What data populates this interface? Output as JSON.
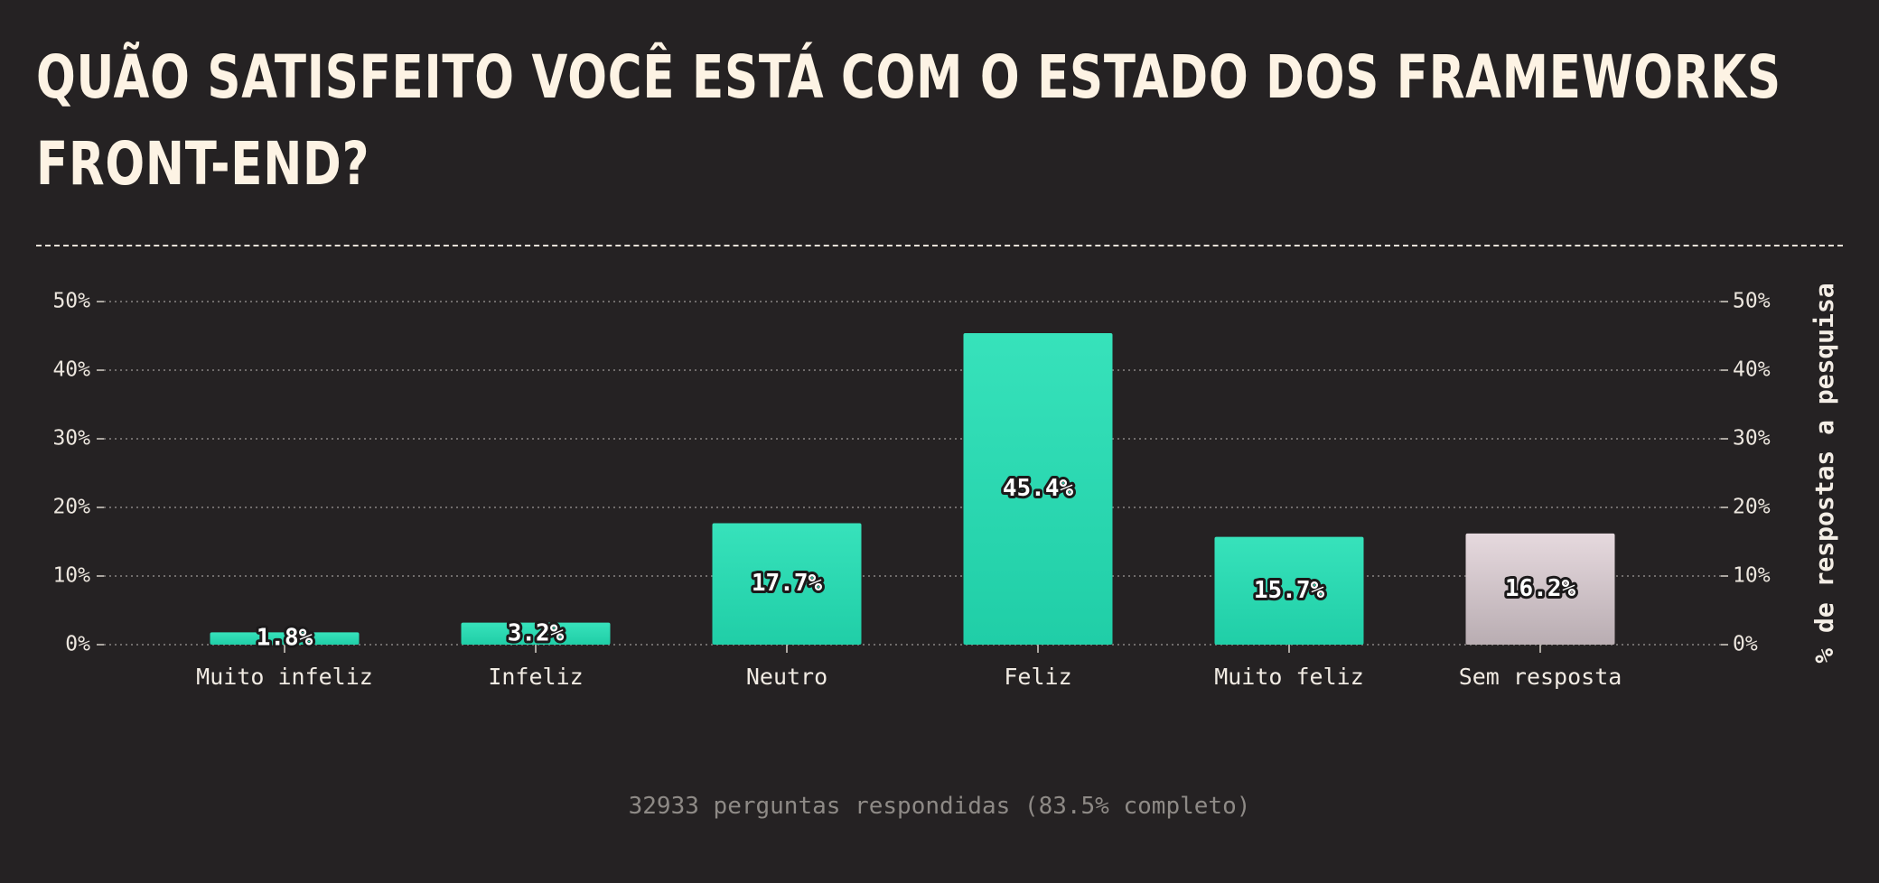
{
  "title": "QUÃO SATISFEITO VOCÊ ESTÁ COM O ESTADO DOS FRAMEWORKS FRONT-END?",
  "footer": "32933 perguntas respondidas (83.5% completo)",
  "colors": {
    "background": "#252223",
    "bar_top": "#37e2bb",
    "bar_bottom": "#20cea7",
    "no_answer_top": "#e6d9de",
    "no_answer_bottom": "#b9adb2",
    "grid": "#8a8583"
  },
  "chart_data": {
    "type": "bar",
    "title": "QUÃO SATISFEITO VOCÊ ESTÁ COM O ESTADO DOS FRAMEWORKS FRONT-END?",
    "xlabel": "",
    "ylabel": "% de respostas a pesquisa",
    "ylim": [
      0,
      50
    ],
    "yticks": [
      "0%",
      "10%",
      "20%",
      "30%",
      "40%",
      "50%"
    ],
    "grid": true,
    "categories": [
      "Muito infeliz",
      "Infeliz",
      "Neutro",
      "Feliz",
      "Muito feliz",
      "Sem resposta"
    ],
    "values": [
      1.8,
      3.2,
      17.7,
      45.4,
      15.7,
      16.2
    ],
    "value_labels": [
      "1.8%",
      "3.2%",
      "17.7%",
      "45.4%",
      "15.7%",
      "16.2%"
    ]
  }
}
